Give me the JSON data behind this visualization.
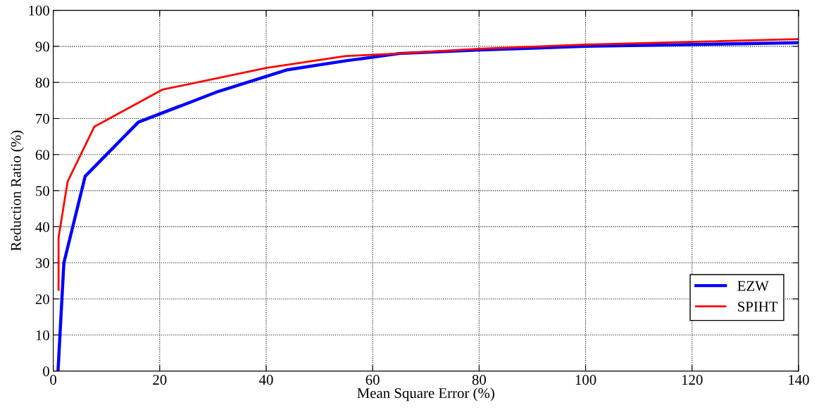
{
  "chart_data": {
    "type": "line",
    "xlabel": "Mean Square Error (%)",
    "ylabel": "Reduction Ratio (%)",
    "xlim": [
      0,
      140
    ],
    "xticks": [
      0,
      20,
      40,
      60,
      80,
      100,
      120,
      140
    ],
    "ylim": [
      0,
      100
    ],
    "yticks": [
      0,
      10,
      20,
      30,
      40,
      50,
      60,
      70,
      80,
      90,
      100
    ],
    "grid": true,
    "legend": "bottom right",
    "line_style": "solid",
    "marker": "none",
    "series": [
      {
        "name": "EZW",
        "color": "#0000ff",
        "x": [
          0.9,
          2,
          6,
          16,
          31,
          44,
          55,
          65,
          80,
          100,
          140
        ],
        "values": [
          0,
          30,
          54,
          69,
          77.5,
          83.5,
          86,
          88,
          89,
          90,
          91
        ]
      },
      {
        "name": "SPIHT",
        "color": "#ff0000",
        "x": [
          1,
          1,
          2.7,
          7.7,
          20.5,
          40,
          55,
          65,
          80,
          100,
          140
        ],
        "values": [
          22.5,
          37,
          52.5,
          67.7,
          78,
          84,
          87.3,
          88,
          89.3,
          90.5,
          92
        ]
      }
    ]
  }
}
